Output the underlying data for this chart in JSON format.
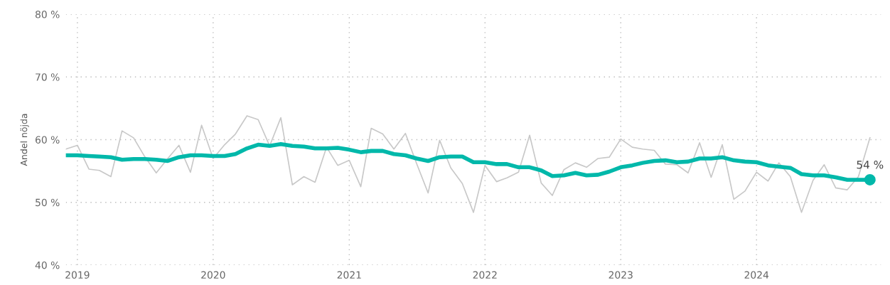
{
  "chart_data": {
    "type": "line",
    "ylabel": "Andel nöjda",
    "x": [
      "2018-12",
      "2019-01",
      "2019-02",
      "2019-03",
      "2019-04",
      "2019-05",
      "2019-06",
      "2019-07",
      "2019-08",
      "2019-09",
      "2019-10",
      "2019-11",
      "2019-12",
      "2020-01",
      "2020-02",
      "2020-03",
      "2020-04",
      "2020-05",
      "2020-06",
      "2020-07",
      "2020-08",
      "2020-09",
      "2020-10",
      "2020-11",
      "2020-12",
      "2021-01",
      "2021-02",
      "2021-03",
      "2021-04",
      "2021-05",
      "2021-06",
      "2021-07",
      "2021-08",
      "2021-09",
      "2021-10",
      "2021-11",
      "2021-12",
      "2022-01",
      "2022-02",
      "2022-03",
      "2022-04",
      "2022-05",
      "2022-06",
      "2022-07",
      "2022-08",
      "2022-09",
      "2022-10",
      "2022-11",
      "2022-12",
      "2023-01",
      "2023-02",
      "2023-03",
      "2023-04",
      "2023-05",
      "2023-06",
      "2023-07",
      "2023-08",
      "2023-09",
      "2023-10",
      "2023-11",
      "2023-12",
      "2024-01",
      "2024-02",
      "2024-03",
      "2024-04",
      "2024-05",
      "2024-06",
      "2024-07",
      "2024-08",
      "2024-09",
      "2024-10",
      "2024-11"
    ],
    "series": [
      {
        "color": "#c8c8c8",
        "values": [
          58.5,
          59.1,
          55.3,
          55.1,
          54.1,
          61.4,
          60.3,
          57.3,
          54.7,
          57.0,
          59.1,
          54.8,
          62.3,
          57.0,
          59.2,
          60.9,
          63.8,
          63.2,
          59.0,
          63.5,
          52.8,
          54.1,
          53.2,
          58.8,
          55.9,
          56.7,
          52.5,
          61.8,
          60.9,
          58.5,
          61.0,
          56.2,
          51.5,
          59.9,
          55.5,
          53.0,
          48.4,
          55.9,
          53.3,
          53.9,
          54.8,
          60.7,
          53.1,
          51.1,
          55.2,
          56.3,
          55.6,
          57.0,
          57.2,
          60.1,
          58.8,
          58.5,
          58.3,
          56.1,
          56.0,
          54.7,
          59.5,
          54.0,
          59.2,
          50.5,
          51.8,
          54.8,
          53.4,
          56.3,
          54.1,
          48.4,
          53.5,
          56.0,
          52.3,
          52.0,
          54.1,
          60.3
        ]
      },
      {
        "color": "#01b8aa",
        "values": [
          57.5,
          57.5,
          57.4,
          57.3,
          57.2,
          56.8,
          56.9,
          56.9,
          56.8,
          56.6,
          57.2,
          57.5,
          57.5,
          57.4,
          57.4,
          57.7,
          58.6,
          59.2,
          59.0,
          59.3,
          59.0,
          58.9,
          58.6,
          58.6,
          58.7,
          58.4,
          58.0,
          58.2,
          58.2,
          57.7,
          57.5,
          57.0,
          56.6,
          57.2,
          57.3,
          57.3,
          56.4,
          56.4,
          56.1,
          56.1,
          55.6,
          55.6,
          55.1,
          54.2,
          54.3,
          54.7,
          54.3,
          54.4,
          54.9,
          55.6,
          55.9,
          56.3,
          56.6,
          56.7,
          56.4,
          56.5,
          57.0,
          57.0,
          57.2,
          56.7,
          56.5,
          56.4,
          55.9,
          55.7,
          55.5,
          54.5,
          54.3,
          54.3,
          54.0,
          53.6,
          53.6,
          53.6
        ]
      },
      {
        "type": "scatter",
        "color": "#01b8aa",
        "x": [
          "2024-11"
        ],
        "values": [
          53.6
        ],
        "value_labels": [
          "54 %"
        ]
      }
    ],
    "xlim": [
      "2018-12",
      "2024-12"
    ],
    "xticks": [
      {
        "value": "2019-01",
        "label": "2019"
      },
      {
        "value": "2020-01",
        "label": "2020"
      },
      {
        "value": "2021-01",
        "label": "2021"
      },
      {
        "value": "2022-01",
        "label": "2022"
      },
      {
        "value": "2023-01",
        "label": "2023"
      },
      {
        "value": "2024-01",
        "label": "2024"
      }
    ],
    "ylim": [
      40,
      80
    ],
    "yticks": [
      {
        "value": 40,
        "label": "40 %"
      },
      {
        "value": 50,
        "label": "50 %"
      },
      {
        "value": 60,
        "label": "60 %"
      },
      {
        "value": 70,
        "label": "70 %"
      },
      {
        "value": 80,
        "label": "80 %"
      }
    ],
    "grid": true,
    "legend": false,
    "line_style": "solid"
  }
}
